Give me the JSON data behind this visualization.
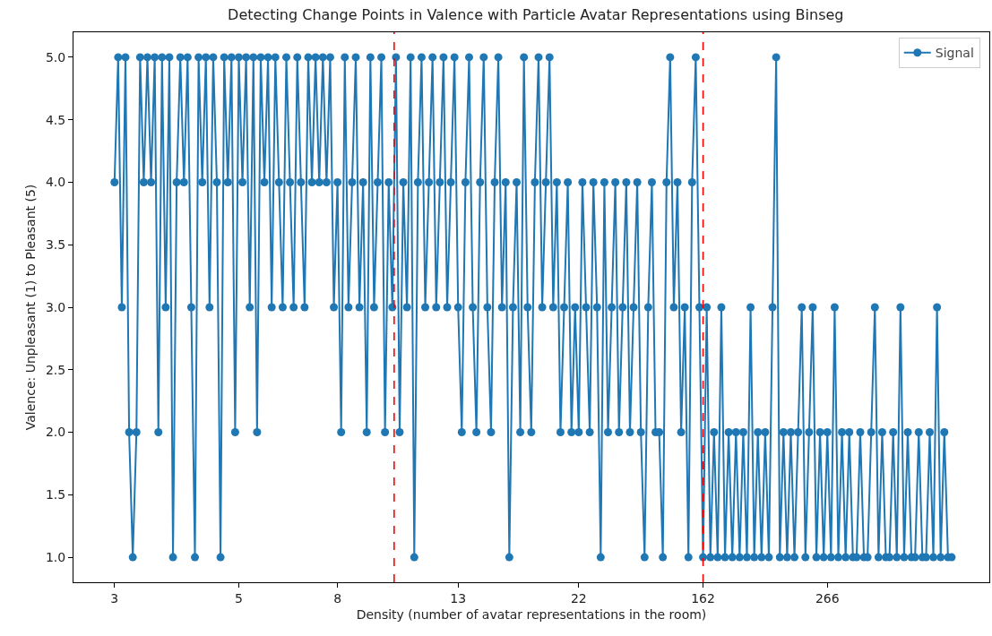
{
  "chart_data": {
    "type": "line",
    "title": "Detecting Change Points in Valence with Particle Avatar Representations using Binseg",
    "xlabel": "Density (number of avatar representations in the room)",
    "ylabel": "Valence: Unpleasant (1) to Pleasant (5)",
    "categories": [
      "3",
      null,
      null,
      null,
      null,
      null,
      null,
      null,
      null,
      null,
      null,
      null,
      null,
      null,
      null,
      null,
      null,
      null,
      null,
      null,
      null,
      null,
      null,
      null,
      null,
      null,
      null,
      null,
      null,
      null,
      null,
      null,
      null,
      null,
      "5",
      null,
      null,
      null,
      null,
      null,
      null,
      null,
      null,
      null,
      null,
      null,
      null,
      null,
      null,
      null,
      null,
      null,
      null,
      null,
      null,
      null,
      null,
      null,
      null,
      null,
      null,
      "8",
      null,
      null,
      null,
      null,
      null,
      null,
      null,
      null,
      null,
      null,
      null,
      null,
      null,
      null,
      null,
      null,
      null,
      null,
      null,
      null,
      null,
      null,
      null,
      null,
      null,
      null,
      null,
      null,
      null,
      null,
      null,
      null,
      "13",
      null,
      null,
      null,
      null,
      null,
      null,
      null,
      null,
      null,
      null,
      null,
      null,
      null,
      null,
      null,
      null,
      null,
      null,
      null,
      null,
      null,
      null,
      null,
      null,
      null,
      null,
      null,
      null,
      null,
      null,
      null,
      null,
      "22",
      null,
      null,
      null,
      null,
      null,
      null,
      null,
      null,
      null,
      null,
      null,
      null,
      null,
      null,
      null,
      null,
      null,
      null,
      null,
      null,
      null,
      null,
      null,
      null,
      null,
      null,
      null,
      null,
      null,
      null,
      null,
      null,
      null,
      "162",
      null,
      null,
      null,
      null,
      null,
      null,
      null,
      null,
      null,
      null,
      null,
      null,
      null,
      null,
      null,
      null,
      null,
      null,
      null,
      null,
      null,
      null,
      null,
      null,
      null,
      null,
      null,
      null,
      null,
      null,
      null,
      null,
      null,
      "266",
      null,
      null,
      null,
      null,
      null,
      null,
      null,
      null,
      null,
      null,
      null,
      null,
      null,
      null,
      null,
      null,
      null,
      null,
      null,
      null,
      null,
      null,
      null,
      null,
      null,
      null,
      null,
      null,
      null,
      null,
      null,
      null,
      null,
      null
    ],
    "ylim": [
      0.8,
      5.2
    ],
    "yticks": [
      {
        "value": 1,
        "label": "1.0"
      },
      {
        "value": 1.5,
        "label": "1.5"
      },
      {
        "value": 2,
        "label": "2.0"
      },
      {
        "value": 2.5,
        "label": "2.5"
      },
      {
        "value": 3,
        "label": "3.0"
      },
      {
        "value": 3.5,
        "label": "3.5"
      },
      {
        "value": 4,
        "label": "4.0"
      },
      {
        "value": 4.5,
        "label": "4.5"
      },
      {
        "value": 5,
        "label": "5.0"
      }
    ],
    "grid": false,
    "legend": "top right",
    "marker": "circle",
    "line_style": "solid",
    "series": [
      {
        "name": "Signal",
        "color": "#1f77b4",
        "values": [
          4,
          5,
          3,
          5,
          2,
          1,
          2,
          5,
          4,
          5,
          4,
          5,
          2,
          5,
          3,
          5,
          1,
          4,
          5,
          4,
          5,
          3,
          1,
          5,
          4,
          5,
          3,
          5,
          4,
          1,
          5,
          4,
          5,
          2,
          5,
          4,
          5,
          3,
          5,
          2,
          5,
          4,
          5,
          3,
          5,
          4,
          3,
          5,
          4,
          3,
          5,
          4,
          3,
          5,
          4,
          5,
          4,
          5,
          4,
          5,
          3,
          4,
          2,
          5,
          3,
          4,
          5,
          3,
          4,
          2,
          5,
          3,
          4,
          5,
          2,
          4,
          3,
          5,
          2,
          4,
          3,
          5,
          1,
          4,
          5,
          3,
          4,
          5,
          3,
          4,
          5,
          3,
          4,
          5,
          3,
          2,
          4,
          5,
          3,
          2,
          4,
          5,
          3,
          2,
          4,
          5,
          3,
          4,
          1,
          3,
          4,
          2,
          5,
          3,
          2,
          4,
          5,
          3,
          4,
          5,
          3,
          4,
          2,
          3,
          4,
          2,
          3,
          2,
          4,
          3,
          2,
          4,
          3,
          1,
          4,
          2,
          3,
          4,
          2,
          3,
          4,
          2,
          3,
          4,
          2,
          1,
          3,
          4,
          2,
          2,
          1,
          4,
          5,
          3,
          4,
          2,
          3,
          1,
          4,
          5,
          3,
          1,
          3,
          1,
          2,
          1,
          3,
          1,
          2,
          1,
          2,
          1,
          2,
          1,
          3,
          1,
          2,
          1,
          2,
          1,
          3,
          5,
          1,
          2,
          1,
          2,
          1,
          2,
          3,
          1,
          2,
          3,
          1,
          2,
          1,
          2,
          1,
          3,
          1,
          2,
          1,
          2,
          1,
          1,
          2,
          1,
          1,
          2,
          3,
          1,
          2,
          1,
          1,
          2,
          1,
          3,
          1,
          2,
          1,
          1,
          2,
          1,
          1,
          2,
          1,
          3,
          1,
          2,
          1,
          1
        ]
      }
    ]
  }
}
